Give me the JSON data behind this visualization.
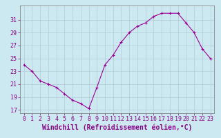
{
  "x": [
    0,
    1,
    2,
    3,
    4,
    5,
    6,
    7,
    8,
    9,
    10,
    11,
    12,
    13,
    14,
    15,
    16,
    17,
    18,
    19,
    20,
    21,
    22,
    23
  ],
  "y": [
    24.0,
    23.0,
    21.5,
    21.0,
    20.5,
    19.5,
    18.5,
    18.0,
    17.2,
    20.5,
    24.0,
    25.5,
    27.5,
    29.0,
    30.0,
    30.5,
    31.5,
    32.0,
    32.0,
    32.0,
    30.5,
    29.0,
    26.5,
    25.0
  ],
  "line_color": "#990099",
  "marker": "+",
  "marker_size": 3,
  "xlabel": "Windchill (Refroidissement éolien,°C)",
  "ylim": [
    16.5,
    33.2
  ],
  "xlim": [
    -0.5,
    23.5
  ],
  "yticks": [
    17,
    19,
    21,
    23,
    25,
    27,
    29,
    31
  ],
  "xticks": [
    0,
    1,
    2,
    3,
    4,
    5,
    6,
    7,
    8,
    9,
    10,
    11,
    12,
    13,
    14,
    15,
    16,
    17,
    18,
    19,
    20,
    21,
    22,
    23
  ],
  "grid_color": "#b0ccd8",
  "bg_color": "#cce8f0",
  "font_color": "#880088",
  "tick_fontsize": 6,
  "xlabel_fontsize": 7,
  "linewidth": 0.8,
  "markeredgewidth": 0.8
}
